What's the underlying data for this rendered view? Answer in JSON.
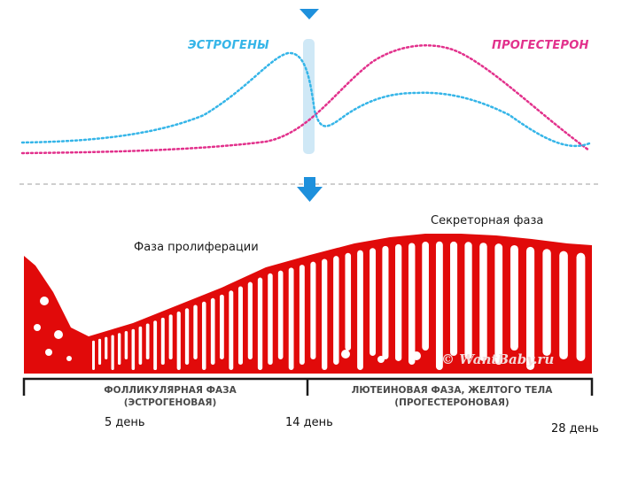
{
  "hormones": {
    "estrogen_label": "ЭСТРОГЕНЫ",
    "progesterone_label": "ПРОГЕСТЕРОН"
  },
  "captions": {
    "proliferation": "Фаза пролиферации",
    "secretory": "Секреторная фаза"
  },
  "phases": {
    "follicular_line1": "ФОЛЛИКУЛЯРНАЯ ФАЗА",
    "follicular_line2": "(ЭСТРОГЕНОВАЯ)",
    "luteal_line1": "ЛЮТЕИНОВАЯ ФАЗА, ЖЕЛТОГО ТЕЛА",
    "luteal_line2": "(ПРОГЕСТЕРОНОВАЯ)"
  },
  "days": {
    "day5": "5 день",
    "day14": "14 день",
    "day28": "28 день"
  },
  "watermark": "© WantBaby.ru",
  "colors": {
    "estrogen": "#35b5e8",
    "progesterone": "#e2318c",
    "marker": "#1e90dc",
    "endometrium": "#e10a0a",
    "ovulation_band": "#cfe8f6"
  },
  "icons": {
    "top_marker": "triangle-down-icon",
    "mid_marker": "arrow-down-icon"
  }
}
